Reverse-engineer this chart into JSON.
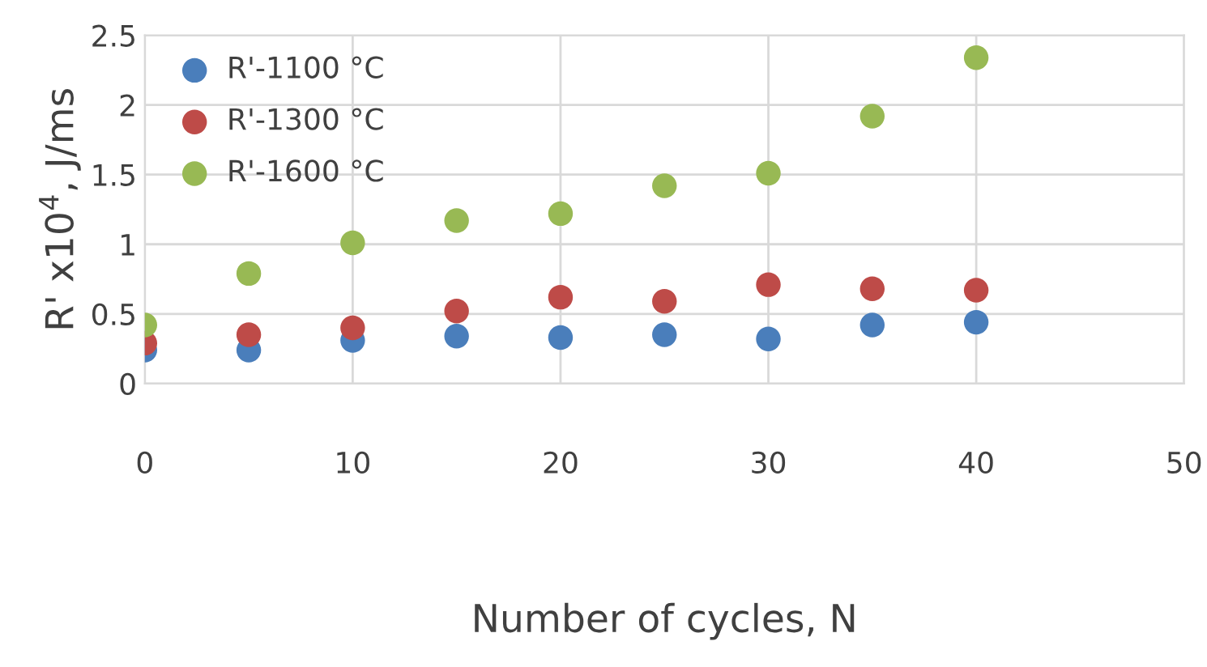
{
  "chart_data": {
    "type": "scatter",
    "xlabel": "Number of cycles, N",
    "ylabel": "R' x10$^{4}$, J/ms",
    "x": [
      0,
      5,
      10,
      15,
      20,
      25,
      30,
      35,
      40
    ],
    "series": [
      {
        "name": "R'-1100 °C",
        "color": "#4a7ebb",
        "values": [
          0.24,
          0.24,
          0.31,
          0.34,
          0.33,
          0.35,
          0.32,
          0.42,
          0.44
        ]
      },
      {
        "name": "R'-1300 °C",
        "color": "#be4b48",
        "values": [
          0.29,
          0.35,
          0.4,
          0.52,
          0.62,
          0.59,
          0.71,
          0.68,
          0.67
        ]
      },
      {
        "name": "R'-1600 °C",
        "color": "#98b954",
        "values": [
          0.42,
          0.79,
          1.01,
          1.17,
          1.22,
          1.42,
          1.51,
          1.92,
          2.34
        ]
      }
    ],
    "xlim": [
      0,
      50
    ],
    "xticks": [
      0,
      10,
      20,
      30,
      40,
      50
    ],
    "ylim": [
      0,
      2.5
    ],
    "yticks": [
      0,
      0.5,
      1,
      1.5,
      2,
      2.5
    ],
    "grid": true,
    "legend": "top left",
    "marker": "circle"
  }
}
